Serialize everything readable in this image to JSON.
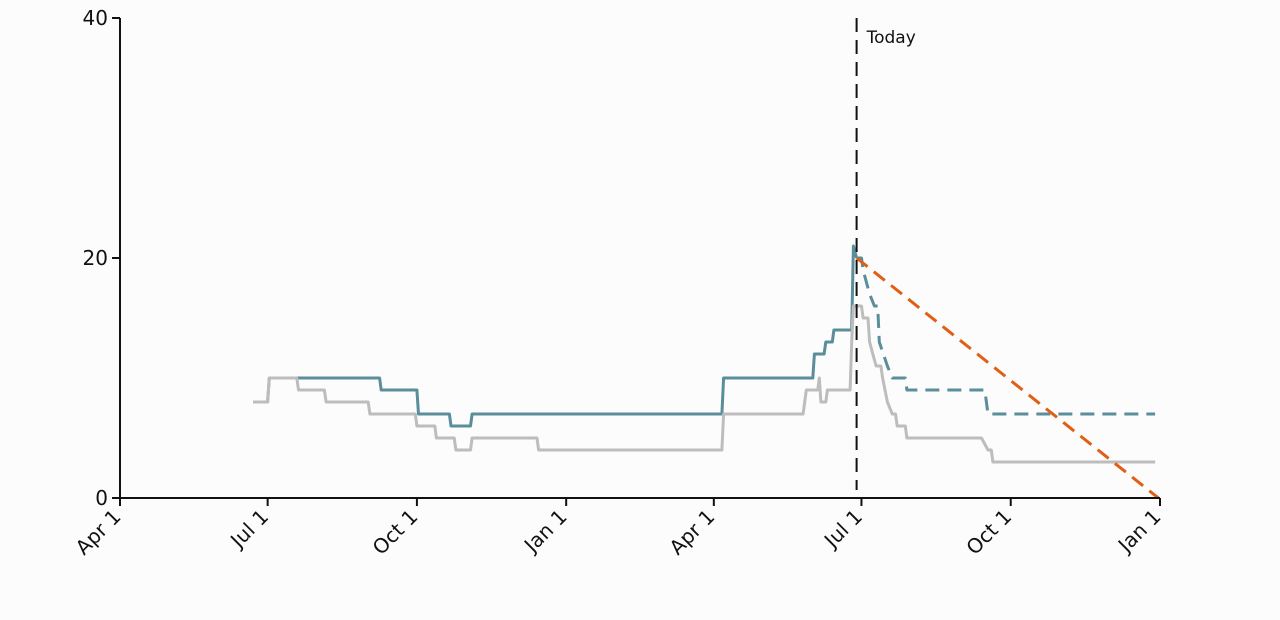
{
  "chart_data": {
    "type": "line",
    "colors": {
      "actual": "#5b8e9b",
      "secondary": "#bdbdbd",
      "ideal": "#e05f14",
      "axis": "#111111",
      "marker": "#111111"
    },
    "ylim": [
      0,
      40
    ],
    "y_ticks": [
      0,
      20,
      40
    ],
    "y_tick_labels": [
      "0",
      "20",
      "40"
    ],
    "xlim": [
      "2023-04-01",
      "2025-01-01"
    ],
    "x_ticks": [
      "2023-04-01",
      "2023-07-01",
      "2023-10-01",
      "2024-01-01",
      "2024-04-01",
      "2024-07-01",
      "2024-10-01",
      "2025-01-01"
    ],
    "x_tick_labels": [
      "Apr 1",
      "Jul 1",
      "Oct 1",
      "Jan 1",
      "Apr 1",
      "Jul 1",
      "Oct 1",
      "Jan 1"
    ],
    "today": {
      "date": "2024-06-28",
      "label": "Today"
    },
    "series": [
      {
        "style": "solid",
        "color": "#5b8e9b",
        "points": [
          [
            "2023-06-22",
            8
          ],
          [
            "2023-07-01",
            8
          ],
          [
            "2023-07-02",
            10
          ],
          [
            "2023-09-08",
            10
          ],
          [
            "2023-09-09",
            9
          ],
          [
            "2023-10-01",
            9
          ],
          [
            "2023-10-02",
            7
          ],
          [
            "2023-10-21",
            7
          ],
          [
            "2023-10-22",
            6
          ],
          [
            "2023-11-03",
            6
          ],
          [
            "2023-11-04",
            7
          ],
          [
            "2024-04-06",
            7
          ],
          [
            "2024-04-07",
            10
          ],
          [
            "2024-06-01",
            10
          ],
          [
            "2024-06-02",
            12
          ],
          [
            "2024-06-08",
            12
          ],
          [
            "2024-06-09",
            13
          ],
          [
            "2024-06-13",
            13
          ],
          [
            "2024-06-14",
            14
          ],
          [
            "2024-06-25",
            14
          ],
          [
            "2024-06-26",
            21
          ],
          [
            "2024-06-28",
            20
          ]
        ]
      },
      {
        "style": "dashed",
        "color": "#5b8e9b",
        "points": [
          [
            "2024-06-28",
            20
          ],
          [
            "2024-07-01",
            20
          ],
          [
            "2024-07-02",
            19
          ],
          [
            "2024-07-06",
            17
          ],
          [
            "2024-07-09",
            16
          ],
          [
            "2024-07-11",
            16
          ],
          [
            "2024-07-12",
            13
          ],
          [
            "2024-07-17",
            11
          ],
          [
            "2024-07-20",
            10
          ],
          [
            "2024-07-28",
            10
          ],
          [
            "2024-07-29",
            9
          ],
          [
            "2024-09-15",
            9
          ],
          [
            "2024-09-17",
            7
          ],
          [
            "2024-12-29",
            7
          ]
        ]
      },
      {
        "style": "solid",
        "color": "#bdbdbd",
        "points": [
          [
            "2023-06-22",
            8
          ],
          [
            "2023-07-01",
            8
          ],
          [
            "2023-07-02",
            10
          ],
          [
            "2023-07-19",
            10
          ],
          [
            "2023-07-20",
            9
          ],
          [
            "2023-08-05",
            9
          ],
          [
            "2023-08-06",
            8
          ],
          [
            "2023-09-01",
            8
          ],
          [
            "2023-09-02",
            7
          ],
          [
            "2023-09-30",
            7
          ],
          [
            "2023-10-01",
            6
          ],
          [
            "2023-10-12",
            6
          ],
          [
            "2023-10-13",
            5
          ],
          [
            "2023-10-24",
            5
          ],
          [
            "2023-10-25",
            4
          ],
          [
            "2023-11-03",
            4
          ],
          [
            "2023-11-04",
            5
          ],
          [
            "2023-12-14",
            5
          ],
          [
            "2023-12-15",
            4
          ],
          [
            "2024-04-06",
            4
          ],
          [
            "2024-04-07",
            7
          ],
          [
            "2024-05-26",
            7
          ],
          [
            "2024-05-28",
            9
          ],
          [
            "2024-06-04",
            9
          ],
          [
            "2024-06-05",
            10
          ],
          [
            "2024-06-06",
            8
          ],
          [
            "2024-06-09",
            8
          ],
          [
            "2024-06-10",
            9
          ],
          [
            "2024-06-24",
            9
          ],
          [
            "2024-06-25",
            13
          ],
          [
            "2024-06-26",
            16
          ],
          [
            "2024-07-01",
            16
          ],
          [
            "2024-07-02",
            15
          ],
          [
            "2024-07-05",
            15
          ],
          [
            "2024-07-06",
            13
          ],
          [
            "2024-07-08",
            12
          ],
          [
            "2024-07-10",
            11
          ],
          [
            "2024-07-13",
            11
          ],
          [
            "2024-07-14",
            10
          ],
          [
            "2024-07-17",
            8
          ],
          [
            "2024-07-20",
            7
          ],
          [
            "2024-07-22",
            7
          ],
          [
            "2024-07-23",
            6
          ],
          [
            "2024-07-28",
            6
          ],
          [
            "2024-07-29",
            5
          ],
          [
            "2024-09-13",
            5
          ],
          [
            "2024-09-17",
            4
          ],
          [
            "2024-09-19",
            4
          ],
          [
            "2024-09-20",
            3
          ],
          [
            "2024-12-29",
            3
          ]
        ]
      },
      {
        "style": "dashed",
        "color": "#e05f14",
        "points": [
          [
            "2024-06-28",
            20
          ],
          [
            "2024-12-31",
            0
          ]
        ]
      }
    ]
  }
}
